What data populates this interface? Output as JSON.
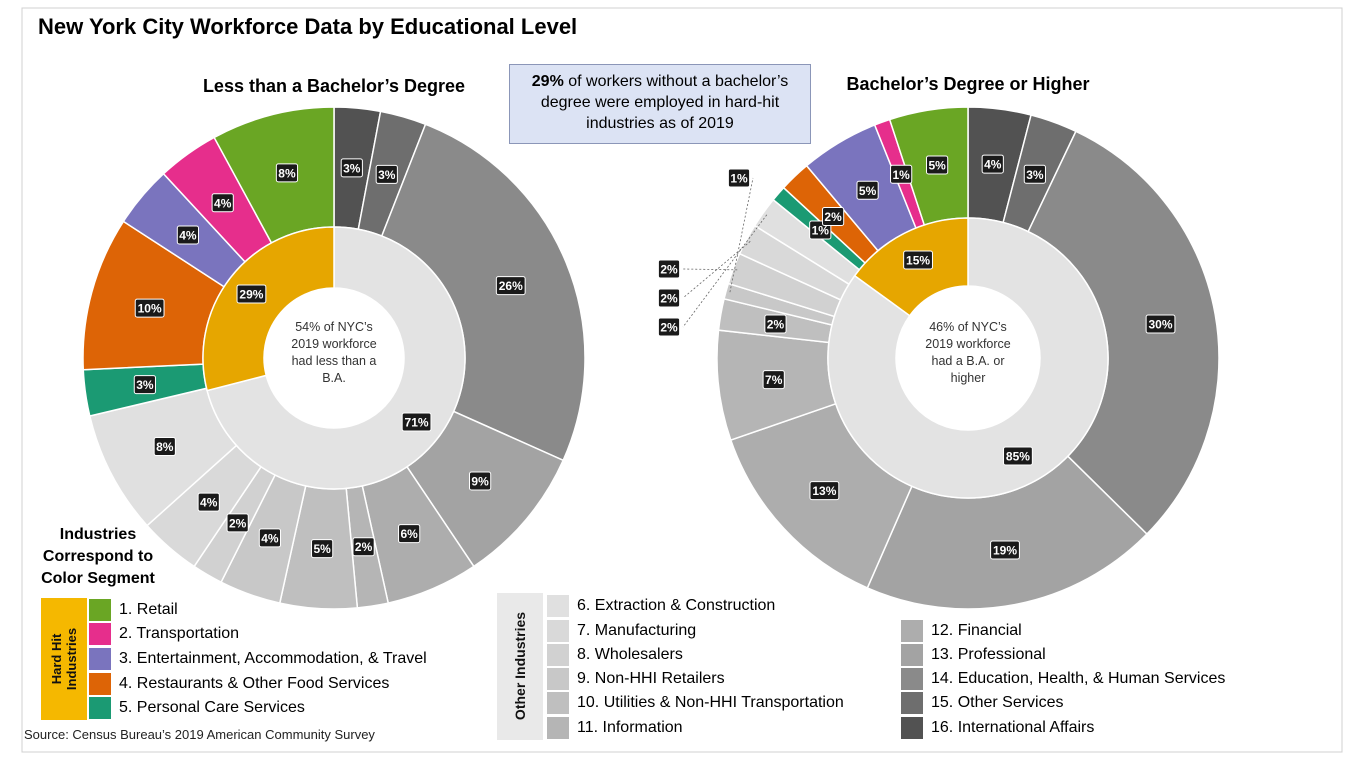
{
  "title": "New York City Workforce Data by Educational Level",
  "callout": {
    "bold": "29%",
    "rest": " of workers without a bachelor’s degree were employed in hard-hit industries as of 2019"
  },
  "source": "Source: Census Bureau’s 2019 American Community Survey",
  "legend": {
    "heading": "Industries Correspond to Color Segment",
    "hard_hit_label": "Hard Hit Industries",
    "other_label": "Other Industries",
    "items": [
      {
        "label": "1. Retail",
        "color": "#6aa624"
      },
      {
        "label": "2. Transportation",
        "color": "#e62e8c"
      },
      {
        "label": "3. Entertainment, Accommodation, & Travel",
        "color": "#7a74be"
      },
      {
        "label": "4. Restaurants & Other Food Services",
        "color": "#dd6406"
      },
      {
        "label": "5. Personal Care Services",
        "color": "#1b9a73"
      },
      {
        "label": "6. Extraction & Construction",
        "color": "#e0e0e0"
      },
      {
        "label": "7. Manufacturing",
        "color": "#d9d9d9"
      },
      {
        "label": "8. Wholesalers",
        "color": "#d1d1d1"
      },
      {
        "label": "9. Non-HHI Retailers",
        "color": "#c8c8c8"
      },
      {
        "label": "10. Utilities & Non-HHI Transportation",
        "color": "#bfbfbf"
      },
      {
        "label": "11. Information",
        "color": "#b5b5b5"
      },
      {
        "label": "12. Financial",
        "color": "#adadad"
      },
      {
        "label": "13. Professional",
        "color": "#a3a3a3"
      },
      {
        "label": "14. Education, Health, & Human Services",
        "color": "#8a8a8a"
      },
      {
        "label": "15. Other Services",
        "color": "#6e6e6e"
      },
      {
        "label": "16. International Affairs",
        "color": "#525252"
      }
    ]
  },
  "chart_data": [
    {
      "type": "pie",
      "title": "Less than a Bachelor’s Degree",
      "center_text": [
        "54% of NYC’s",
        "2019 workforce",
        "had less than a",
        "B.A."
      ],
      "outer": {
        "categories": [
          "16. International Affairs",
          "15. Other Services",
          "14. Education, Health, & Human Services",
          "13. Professional",
          "12. Financial",
          "11. Information",
          "10. Utilities & Non-HHI Transportation",
          "9. Non-HHI Retailers",
          "8. Wholesalers",
          "7. Manufacturing",
          "6. Extraction & Construction",
          "5. Personal Care Services",
          "4. Restaurants & Other Food Services",
          "3. Entertainment, Accommodation, & Travel",
          "2. Transportation",
          "1. Retail"
        ],
        "values": [
          3,
          3,
          26,
          9,
          6,
          2,
          5,
          4,
          2,
          4,
          8,
          3,
          10,
          4,
          4,
          8
        ],
        "labels": [
          "3%",
          "3%",
          "26%",
          "9%",
          "6%",
          "2%",
          "5%",
          "4%",
          "2%",
          "4%",
          "8%",
          "3%",
          "10%",
          "4%",
          "4%",
          "8%"
        ]
      },
      "inner": {
        "categories": [
          "Other Industries",
          "Hard Hit Industries"
        ],
        "values": [
          71,
          29
        ],
        "labels": [
          "71%",
          "29%"
        ]
      }
    },
    {
      "type": "pie",
      "title": "Bachelor’s Degree or Higher",
      "center_text": [
        "46% of NYC’s",
        "2019 workforce",
        "had a B.A. or",
        "higher"
      ],
      "outer": {
        "categories": [
          "16. International Affairs",
          "15. Other Services",
          "14. Education, Health, & Human Services",
          "13. Professional",
          "12. Financial",
          "11. Information",
          "10. Utilities & Non-HHI Transportation",
          "9. Non-HHI Retailers",
          "8. Wholesalers",
          "7. Manufacturing",
          "6. Extraction & Construction",
          "5. Personal Care Services",
          "4. Restaurants & Other Food Services",
          "3. Entertainment, Accommodation, & Travel",
          "2. Transportation",
          "1. Retail"
        ],
        "values": [
          4,
          3,
          30,
          19,
          13,
          7,
          2,
          1,
          2,
          2,
          2,
          1,
          2,
          5,
          1,
          5
        ],
        "labels": [
          "4%",
          "3%",
          "30%",
          "19%",
          "13%",
          "7%",
          "2%",
          "1%",
          "2%",
          "2%",
          "2%",
          "1%",
          "2%",
          "5%",
          "1%",
          "5%"
        ]
      },
      "inner": {
        "categories": [
          "Other Industries",
          "Hard Hit Industries"
        ],
        "values": [
          85,
          15
        ],
        "labels": [
          "85%",
          "15%"
        ]
      }
    }
  ]
}
